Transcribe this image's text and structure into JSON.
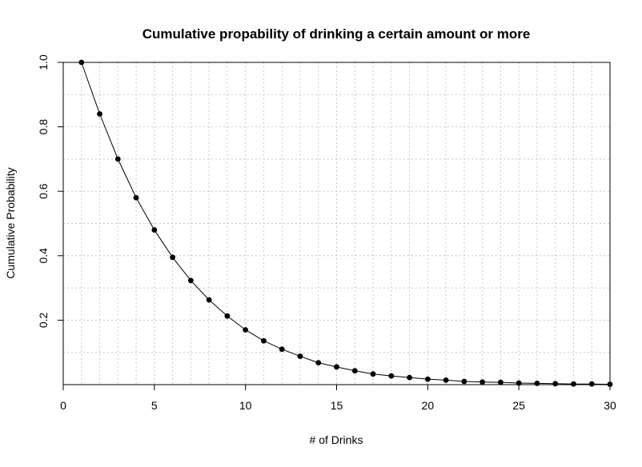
{
  "chart_data": {
    "type": "line",
    "title": "Cumulative propability of drinking a certain amount or more",
    "xlabel": "# of Drinks",
    "ylabel": "Cumulative Probability",
    "xlim": [
      0,
      30
    ],
    "ylim": [
      0,
      1.0
    ],
    "x_ticks": [
      0,
      5,
      10,
      15,
      20,
      25,
      30
    ],
    "x_tick_labels": [
      "0",
      "5",
      "10",
      "15",
      "20",
      "25",
      "30"
    ],
    "y_ticks": [
      0.2,
      0.4,
      0.6,
      0.8,
      1.0
    ],
    "y_tick_labels": [
      "0.2",
      "0.4",
      "0.6",
      "0.8",
      "1.0"
    ],
    "grid": true,
    "x_grid_values": [
      0,
      1,
      2,
      3,
      4,
      5,
      6,
      7,
      8,
      9,
      10,
      11,
      12,
      13,
      14,
      15,
      16,
      17,
      18,
      19,
      20,
      21,
      22,
      23,
      24,
      25,
      26,
      27,
      28,
      29,
      30
    ],
    "y_grid_values": [
      0.1,
      0.2,
      0.3,
      0.4,
      0.5,
      0.6,
      0.7,
      0.8,
      0.9,
      1.0
    ],
    "series": [
      {
        "x": [
          1,
          2,
          3,
          4,
          5,
          6,
          7,
          8,
          9,
          10,
          11,
          12,
          13,
          14,
          15,
          16,
          17,
          18,
          19,
          20,
          21,
          22,
          23,
          24,
          25,
          26,
          27,
          28,
          29,
          30
        ],
        "values": [
          1.0,
          0.84,
          0.7,
          0.58,
          0.48,
          0.395,
          0.323,
          0.263,
          0.213,
          0.17,
          0.136,
          0.11,
          0.088,
          0.068,
          0.055,
          0.043,
          0.033,
          0.027,
          0.022,
          0.017,
          0.014,
          0.01,
          0.008,
          0.007,
          0.005,
          0.004,
          0.003,
          0.002,
          0.002,
          0.001
        ],
        "marker": "filled-circle",
        "color": "#000000"
      }
    ]
  }
}
